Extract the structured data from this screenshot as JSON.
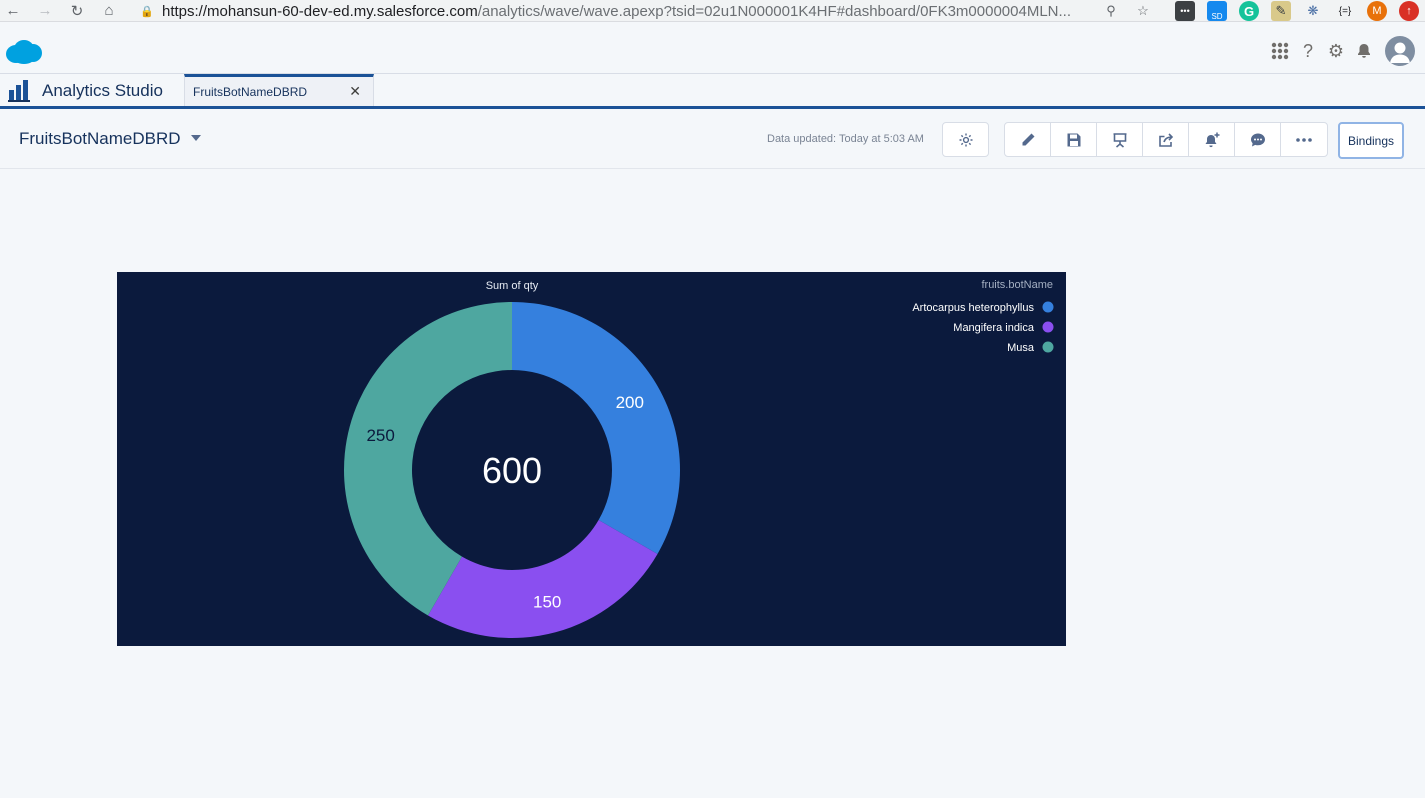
{
  "browser": {
    "url_host": "https://mohansun-60-dev-ed.my.salesforce.com",
    "url_rest": "/analytics/wave/wave.apexp?tsid=02u1N000001K4HF#dashboard/0FK3m0000004MLN...",
    "profile_initial": "M",
    "ext_badge": "SD",
    "ext_json": "{=}"
  },
  "app": {
    "name": "Analytics Studio",
    "tab_label": "FruitsBotNameDBRD"
  },
  "toolbar": {
    "dashboard_title": "FruitsBotNameDBRD",
    "data_updated": "Data updated: Today at 5:03 AM",
    "bindings_label": "Bindings"
  },
  "chart_data": {
    "type": "donut",
    "title": "Sum of qty",
    "legend_title": "fruits.botName",
    "legend_position": "top-right",
    "total": "600",
    "slices": [
      {
        "name": "Artocarpus heterophyllus",
        "value": 200,
        "color": "#3580de"
      },
      {
        "name": "Mangifera indica",
        "value": 150,
        "color": "#8a4ff0"
      },
      {
        "name": "Musa",
        "value": 250,
        "color": "#4ea7a0"
      }
    ]
  }
}
